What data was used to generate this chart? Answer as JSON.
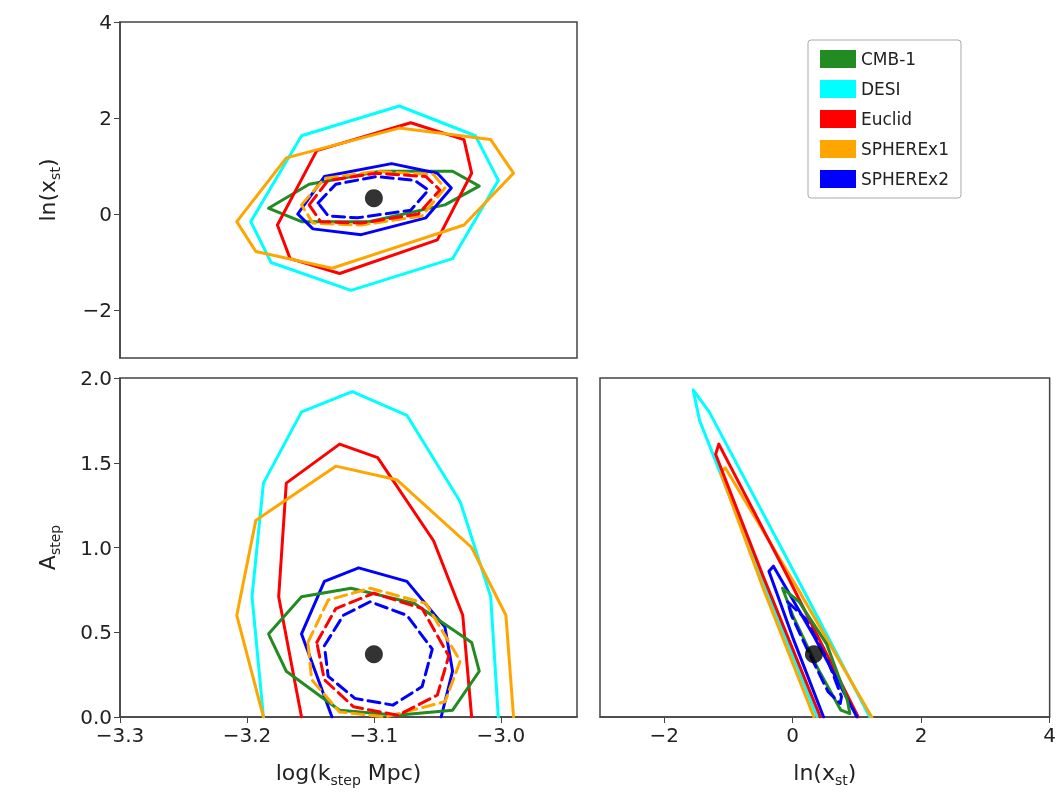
{
  "chart_data": [
    {
      "type": "line",
      "ylabel": "ln(x$_{st}$)",
      "xlim": [
        -3.3,
        -2.94
      ],
      "ylim": [
        -3,
        4
      ],
      "yticks": [
        {
          "value": -2,
          "label": "−2"
        },
        0,
        2,
        4
      ],
      "tick_labels": "y",
      "grid": false,
      "legend": "right",
      "marker": "none",
      "line_style": "solid",
      "series": [
        {
          "name": "CMB-1",
          "color": "#228b22",
          "x": [
            -3.183,
            -3.151,
            -3.095,
            -3.038,
            -3.017,
            -3.044,
            -3.104,
            -3.157,
            -3.183
          ],
          "values": [
            0.12,
            0.62,
            0.89,
            0.89,
            0.58,
            0.19,
            -0.16,
            -0.16,
            0.12
          ]
        },
        {
          "name": "DESI",
          "color": "#00ffff",
          "x": [
            -3.197,
            -3.157,
            -3.08,
            -3.02,
            -3.002,
            -3.038,
            -3.118,
            -3.181,
            -3.197
          ],
          "values": [
            -0.16,
            1.63,
            2.25,
            1.63,
            0.7,
            -0.93,
            -1.59,
            -1.01,
            -0.16
          ]
        },
        {
          "name": "Euclid",
          "color": "#ff0000",
          "x": [
            -3.176,
            -3.145,
            -3.071,
            -3.029,
            -3.023,
            -3.05,
            -3.127,
            -3.166,
            -3.176
          ],
          "values": [
            -0.23,
            1.32,
            1.9,
            1.55,
            0.85,
            -0.54,
            -1.24,
            -0.93,
            -0.23
          ]
        },
        {
          "name": "SPHEREx1",
          "color": "#ffa500",
          "x": [
            -3.208,
            -3.169,
            -3.08,
            -3.008,
            -2.99,
            -3.029,
            -3.133,
            -3.193,
            -3.208
          ],
          "values": [
            -0.16,
            1.17,
            1.79,
            1.55,
            0.85,
            -0.23,
            -1.13,
            -0.78,
            -0.16
          ]
        },
        {
          "name": "SPHEREx2",
          "color": "#0000ff",
          "x": [
            -3.16,
            -3.139,
            -3.086,
            -3.05,
            -3.039,
            -3.059,
            -3.11,
            -3.148,
            -3.16
          ],
          "values": [
            0.0,
            0.78,
            1.05,
            0.85,
            0.54,
            -0.08,
            -0.43,
            -0.31,
            0.0
          ]
        },
        {
          "color": "#ffa500",
          "line_style": "dashed",
          "x": [
            -3.157,
            -3.139,
            -3.098,
            -3.053,
            -3.044,
            -3.062,
            -3.11,
            -3.148,
            -3.157
          ],
          "values": [
            0.19,
            0.74,
            0.89,
            0.82,
            0.54,
            -0.04,
            -0.23,
            -0.19,
            0.19
          ]
        },
        {
          "color": "#ff0000",
          "line_style": "dashed",
          "x": [
            -3.151,
            -3.136,
            -3.098,
            -3.059,
            -3.048,
            -3.065,
            -3.11,
            -3.142,
            -3.151
          ],
          "values": [
            0.19,
            0.7,
            0.85,
            0.78,
            0.5,
            0.0,
            -0.19,
            -0.16,
            0.19
          ]
        },
        {
          "color": "#0000ff",
          "line_style": "dashed",
          "x": [
            -3.144,
            -3.13,
            -3.098,
            -3.068,
            -3.057,
            -3.071,
            -3.113,
            -3.136,
            -3.144
          ],
          "values": [
            0.23,
            0.62,
            0.78,
            0.7,
            0.5,
            0.08,
            -0.08,
            -0.04,
            0.23
          ]
        },
        {
          "type": "scatter",
          "color": "#000000",
          "marker": "circle",
          "x": [
            -3.1
          ],
          "values": [
            0.33
          ]
        }
      ]
    },
    {
      "type": "line",
      "xlabel": "log(k$_{step}$ Mpc)",
      "ylabel": "A$_{step}$",
      "xlim": [
        -3.3,
        -2.94
      ],
      "ylim": [
        0,
        2
      ],
      "xticks": [
        {
          "value": -3.3,
          "label": "−3.3"
        },
        {
          "value": -3.2,
          "label": "−3.2"
        },
        {
          "value": -3.1,
          "label": "−3.1"
        },
        {
          "value": -3.0,
          "label": "−3.0"
        }
      ],
      "yticks": [
        {
          "value": 0,
          "label": "0.0"
        },
        {
          "value": 0.5,
          "label": "0.5"
        },
        {
          "value": 1,
          "label": "1.0"
        },
        {
          "value": 1.5,
          "label": "1.5"
        },
        {
          "value": 2,
          "label": "2.0"
        }
      ],
      "grid": false,
      "marker": "none",
      "line_style": "solid",
      "series": [
        {
          "color": "#00ffff",
          "x": [
            -3.187,
            -3.196,
            -3.187,
            -3.157,
            -3.117,
            -3.074,
            -3.032,
            -3.008,
            -3.002
          ],
          "values": [
            0,
            0.71,
            1.38,
            1.8,
            1.92,
            1.78,
            1.27,
            0.71,
            0
          ]
        },
        {
          "color": "#ff0000",
          "x": [
            -3.157,
            -3.175,
            -3.169,
            -3.127,
            -3.097,
            -3.053,
            -3.03,
            -3.023
          ],
          "values": [
            0,
            0.71,
            1.38,
            1.61,
            1.53,
            1.04,
            0.6,
            0
          ]
        },
        {
          "color": "#ffa500",
          "x": [
            -3.187,
            -3.208,
            -3.193,
            -3.13,
            -3.082,
            -3.023,
            -2.996,
            -2.99
          ],
          "values": [
            0,
            0.6,
            1.16,
            1.48,
            1.4,
            1.0,
            0.6,
            0
          ]
        },
        {
          "color": "#0000ff",
          "x": [
            -3.133,
            -3.157,
            -3.139,
            -3.112,
            -3.074,
            -3.044,
            -3.038,
            -3.047
          ],
          "values": [
            0,
            0.49,
            0.8,
            0.88,
            0.8,
            0.53,
            0.27,
            0
          ]
        },
        {
          "color": "#228b22",
          "x": [
            -3.183,
            -3.157,
            -3.118,
            -3.068,
            -3.023,
            -3.017,
            -3.038,
            -3.082,
            -3.127,
            -3.169,
            -3.183
          ],
          "values": [
            0.49,
            0.71,
            0.76,
            0.67,
            0.44,
            0.27,
            0.04,
            0.01,
            0.04,
            0.27,
            0.49
          ]
        },
        {
          "color": "#ffa500",
          "line_style": "dashed",
          "x": [
            -3.152,
            -3.136,
            -3.103,
            -3.059,
            -3.032,
            -3.044,
            -3.091,
            -3.127,
            -3.149,
            -3.152
          ],
          "values": [
            0.44,
            0.69,
            0.76,
            0.67,
            0.33,
            0.09,
            0.0,
            0.03,
            0.22,
            0.44
          ]
        },
        {
          "color": "#ff0000",
          "line_style": "dashed",
          "x": [
            -3.145,
            -3.13,
            -3.1,
            -3.062,
            -3.041,
            -3.05,
            -3.081,
            -3.116,
            -3.139,
            -3.145
          ],
          "values": [
            0.44,
            0.64,
            0.73,
            0.64,
            0.36,
            0.13,
            0.01,
            0.06,
            0.22,
            0.44
          ]
        },
        {
          "color": "#0000ff",
          "line_style": "dashed",
          "x": [
            -3.139,
            -3.124,
            -3.103,
            -3.074,
            -3.054,
            -3.062,
            -3.085,
            -3.115,
            -3.136,
            -3.139
          ],
          "values": [
            0.42,
            0.6,
            0.68,
            0.6,
            0.4,
            0.18,
            0.07,
            0.11,
            0.24,
            0.42
          ]
        },
        {
          "type": "scatter",
          "color": "#000000",
          "marker": "circle",
          "x": [
            -3.1
          ],
          "values": [
            0.37
          ]
        }
      ]
    },
    {
      "type": "line",
      "xlabel": "ln(x$_{st}$)",
      "xlim": [
        -3,
        4
      ],
      "ylim": [
        0,
        2
      ],
      "xticks": [
        {
          "value": -2,
          "label": "−2"
        },
        0,
        2,
        4
      ],
      "tick_labels": "x",
      "grid": false,
      "marker": "none",
      "line_style": "solid",
      "series": [
        {
          "color": "#00ffff",
          "x": [
            0.38,
            -0.62,
            -1.45,
            -1.55,
            -1.3,
            -0.11,
            1.2
          ],
          "values": [
            0,
            0.95,
            1.75,
            1.93,
            1.8,
            0.95,
            0
          ]
        },
        {
          "color": "#ffa500",
          "x": [
            0.33,
            -0.45,
            -1.12,
            -1.05,
            0.09,
            1.23
          ],
          "values": [
            0,
            0.75,
            1.44,
            1.47,
            0.75,
            0
          ]
        },
        {
          "color": "#ff0000",
          "x": [
            0.43,
            -0.46,
            -1.2,
            -1.15,
            -0.08,
            1.02
          ],
          "values": [
            0,
            0.83,
            1.55,
            1.61,
            0.83,
            0
          ]
        },
        {
          "color": "#0000ff",
          "x": [
            0.48,
            0.0,
            -0.37,
            -0.3,
            0.34,
            1.0
          ],
          "values": [
            0,
            0.47,
            0.86,
            0.89,
            0.47,
            0
          ]
        },
        {
          "color": "#228b22",
          "x": [
            -0.16,
            0.1,
            0.53,
            0.85,
            0.89,
            0.75,
            0.4,
            0.0,
            -0.16
          ],
          "values": [
            0.76,
            0.68,
            0.43,
            0.1,
            0.02,
            0.04,
            0.28,
            0.6,
            0.76
          ]
        },
        {
          "color": "#0000ff",
          "line_style": "dashed",
          "x": [
            -0.08,
            0.2,
            0.55,
            0.76,
            0.74,
            0.55,
            0.25,
            -0.02,
            -0.08
          ],
          "values": [
            0.68,
            0.58,
            0.33,
            0.12,
            0.08,
            0.15,
            0.38,
            0.6,
            0.68
          ]
        },
        {
          "type": "scatter",
          "color": "#000000",
          "marker": "circle",
          "x": [
            0.33
          ],
          "values": [
            0.37
          ]
        }
      ]
    }
  ]
}
